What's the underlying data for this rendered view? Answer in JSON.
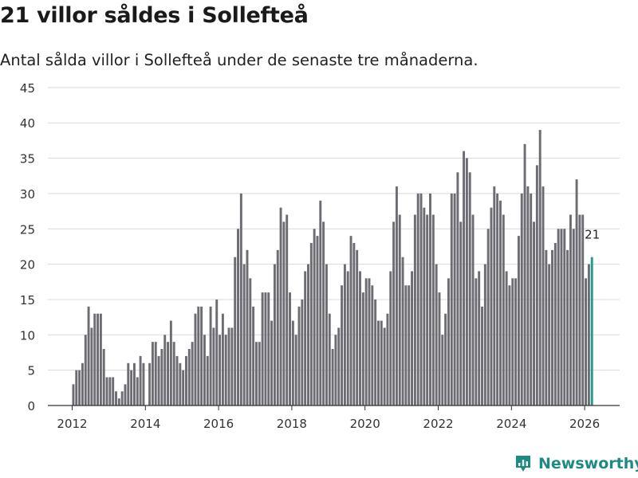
{
  "header": {
    "title": "21 villor såldes i Sollefteå",
    "subtitle": "Antal sålda villor i Sollefteå under de senaste tre månaderna."
  },
  "brand": {
    "name": "Newsworthy"
  },
  "colors": {
    "bar": "#6d6c72",
    "highlight": "#26998e",
    "grid": "#d9d9d9",
    "axis": "#333333",
    "brand": "#1e8a84"
  },
  "chart_data": {
    "type": "bar",
    "title": "21 villor såldes i Sollefteå",
    "subtitle": "Antal sålda villor i Sollefteå under de senaste tre månaderna.",
    "xlabel": "",
    "ylabel": "",
    "ylim": [
      0,
      45
    ],
    "yticks": [
      0,
      5,
      10,
      15,
      20,
      25,
      30,
      35,
      40,
      45
    ],
    "xticks": [
      2012,
      2014,
      2016,
      2018,
      2020,
      2022,
      2024,
      2026
    ],
    "grid": true,
    "start": "2012-01",
    "frequency": "monthly",
    "values": [
      3,
      5,
      5,
      6,
      10,
      14,
      11,
      13,
      13,
      13,
      8,
      4,
      4,
      4,
      2,
      1,
      2,
      3,
      6,
      5,
      6,
      4,
      7,
      6,
      0,
      6,
      9,
      9,
      7,
      8,
      10,
      9,
      12,
      9,
      7,
      6,
      5,
      7,
      8,
      9,
      13,
      14,
      14,
      10,
      7,
      14,
      11,
      15,
      10,
      13,
      10,
      11,
      11,
      21,
      25,
      30,
      20,
      22,
      18,
      14,
      9,
      9,
      16,
      16,
      16,
      12,
      20,
      22,
      28,
      26,
      27,
      16,
      12,
      10,
      14,
      15,
      19,
      20,
      23,
      25,
      24,
      29,
      26,
      20,
      13,
      8,
      10,
      11,
      17,
      20,
      19,
      24,
      23,
      22,
      19,
      16,
      18,
      18,
      17,
      15,
      12,
      12,
      11,
      13,
      19,
      26,
      31,
      27,
      21,
      17,
      17,
      19,
      27,
      30,
      30,
      28,
      27,
      30,
      27,
      20,
      16,
      10,
      13,
      18,
      30,
      30,
      33,
      26,
      36,
      35,
      33,
      27,
      18,
      19,
      14,
      20,
      25,
      28,
      31,
      30,
      29,
      27,
      19,
      17,
      18,
      18,
      24,
      30,
      37,
      31,
      30,
      26,
      34,
      39,
      31,
      22,
      20,
      22,
      23,
      25,
      25,
      25,
      22,
      27,
      25,
      32,
      27,
      27,
      18,
      20,
      21
    ],
    "highlight": {
      "index": 170,
      "label": "21"
    }
  }
}
